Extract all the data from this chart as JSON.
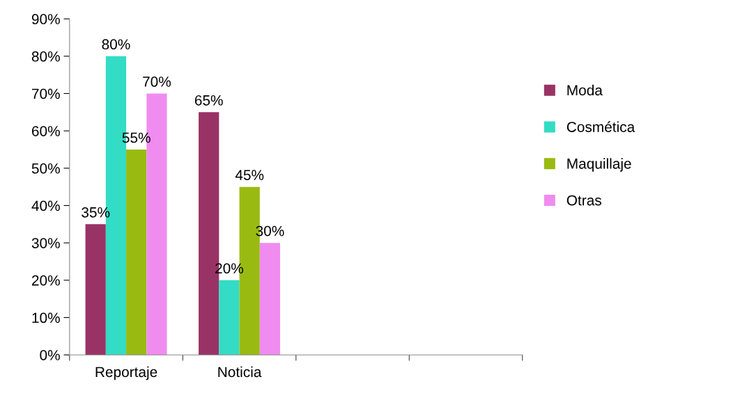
{
  "chart_data": {
    "type": "bar",
    "categories": [
      "Reportaje",
      "Noticia",
      null,
      null
    ],
    "series": [
      {
        "name": "Moda",
        "color": "#993366",
        "values": [
          35,
          65,
          null,
          null
        ],
        "value_labels": [
          "35%",
          "65%",
          null,
          null
        ]
      },
      {
        "name": "Cosmética",
        "color": "#33dcc4",
        "values": [
          80,
          20,
          null,
          null
        ],
        "value_labels": [
          "80%",
          "20%",
          null,
          null
        ]
      },
      {
        "name": "Maquillaje",
        "color": "#99bb11",
        "values": [
          55,
          45,
          null,
          null
        ],
        "value_labels": [
          "55%",
          "45%",
          null,
          null
        ]
      },
      {
        "name": "Otras",
        "color": "#f08cf0",
        "values": [
          70,
          30,
          null,
          null
        ],
        "value_labels": [
          "70%",
          "30%",
          null,
          null
        ]
      }
    ],
    "ylim": [
      0,
      90
    ],
    "yticks": [
      {
        "value": 0,
        "label": "0%"
      },
      {
        "value": 10,
        "label": "10%"
      },
      {
        "value": 20,
        "label": "20%"
      },
      {
        "value": 30,
        "label": "30%"
      },
      {
        "value": 40,
        "label": "40%"
      },
      {
        "value": 50,
        "label": "50%"
      },
      {
        "value": 60,
        "label": "60%"
      },
      {
        "value": 70,
        "label": "70%"
      },
      {
        "value": 80,
        "label": "80%"
      },
      {
        "value": 90,
        "label": "90%"
      }
    ],
    "grid": false,
    "legend": "right"
  }
}
